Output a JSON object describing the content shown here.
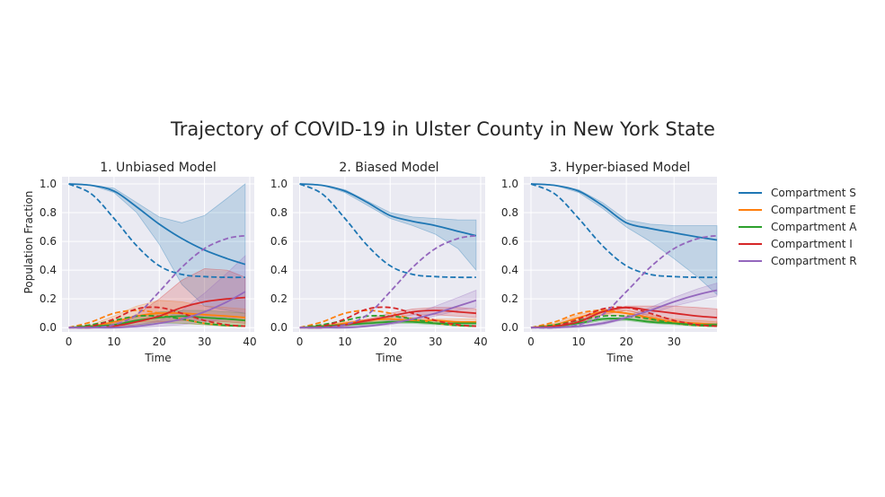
{
  "suptitle": "Trajectory of COVID-19 in Ulster County in New York State",
  "legend": {
    "placement": "right",
    "entries": [
      {
        "label": "Compartment S",
        "color": "#1f77b4"
      },
      {
        "label": "Compartment E",
        "color": "#ff7f0e"
      },
      {
        "label": "Compartment A",
        "color": "#2ca02c"
      },
      {
        "label": "Compartment I",
        "color": "#d62728"
      },
      {
        "label": "Compartment R",
        "color": "#9467bd"
      }
    ]
  },
  "style": {
    "axes_background": "#eaeaf2",
    "grid": true,
    "grid_color": "#ffffff"
  },
  "chart_data": [
    {
      "type": "line",
      "title": "1. Unbiased Model",
      "xlabel": "Time",
      "ylabel": "Population Fraction",
      "xlim": [
        -1.5,
        41
      ],
      "ylim": [
        -0.03,
        1.05
      ],
      "xticks": [
        0,
        10,
        20,
        30,
        40
      ],
      "yticks": [
        0.0,
        0.2,
        0.4,
        0.6,
        0.8,
        1.0
      ],
      "x": [
        0,
        5,
        10,
        15,
        20,
        25,
        30,
        35,
        39
      ],
      "series": [
        {
          "name": "Compartment S",
          "color": "#1f77b4",
          "style": "solid",
          "values": [
            1.0,
            0.99,
            0.95,
            0.84,
            0.72,
            0.62,
            0.54,
            0.48,
            0.44
          ],
          "band_low": [
            1.0,
            0.99,
            0.94,
            0.8,
            0.58,
            0.3,
            0.15,
            0.12,
            0.1
          ],
          "band_high": [
            1.0,
            0.99,
            0.97,
            0.87,
            0.77,
            0.73,
            0.78,
            0.9,
            1.0
          ]
        },
        {
          "name": "Compartment S",
          "color": "#1f77b4",
          "style": "dashed",
          "values": [
            1.0,
            0.93,
            0.76,
            0.57,
            0.43,
            0.37,
            0.355,
            0.35,
            0.35
          ]
        },
        {
          "name": "Compartment E",
          "color": "#ff7f0e",
          "style": "solid",
          "values": [
            0.0,
            0.01,
            0.04,
            0.08,
            0.1,
            0.1,
            0.09,
            0.08,
            0.07
          ],
          "band_low": [
            0.0,
            0.0,
            0.02,
            0.04,
            0.04,
            0.03,
            0.02,
            0.01,
            0.01
          ],
          "band_high": [
            0.0,
            0.02,
            0.08,
            0.15,
            0.19,
            0.18,
            0.15,
            0.14,
            0.13
          ]
        },
        {
          "name": "Compartment E",
          "color": "#ff7f0e",
          "style": "dashed",
          "values": [
            0.0,
            0.04,
            0.1,
            0.12,
            0.1,
            0.06,
            0.03,
            0.015,
            0.01
          ]
        },
        {
          "name": "Compartment A",
          "color": "#2ca02c",
          "style": "solid",
          "values": [
            0.0,
            0.01,
            0.02,
            0.05,
            0.07,
            0.08,
            0.07,
            0.06,
            0.05
          ],
          "band_low": [
            0.0,
            0.0,
            0.01,
            0.02,
            0.03,
            0.03,
            0.02,
            0.01,
            0.01
          ],
          "band_high": [
            0.0,
            0.01,
            0.04,
            0.08,
            0.11,
            0.12,
            0.12,
            0.11,
            0.1
          ]
        },
        {
          "name": "Compartment A",
          "color": "#2ca02c",
          "style": "dashed",
          "values": [
            0.0,
            0.02,
            0.05,
            0.08,
            0.08,
            0.06,
            0.03,
            0.015,
            0.01
          ]
        },
        {
          "name": "Compartment I",
          "color": "#d62728",
          "style": "solid",
          "values": [
            0.0,
            0.0,
            0.01,
            0.04,
            0.08,
            0.14,
            0.18,
            0.2,
            0.21
          ],
          "band_low": [
            0.0,
            0.0,
            0.0,
            0.02,
            0.04,
            0.05,
            0.05,
            0.04,
            0.03
          ],
          "band_high": [
            0.0,
            0.01,
            0.03,
            0.09,
            0.2,
            0.33,
            0.41,
            0.4,
            0.35
          ]
        },
        {
          "name": "Compartment I",
          "color": "#d62728",
          "style": "dashed",
          "values": [
            0.0,
            0.01,
            0.06,
            0.13,
            0.14,
            0.1,
            0.05,
            0.02,
            0.01
          ]
        },
        {
          "name": "Compartment R",
          "color": "#9467bd",
          "style": "solid",
          "values": [
            0.0,
            0.0,
            0.0,
            0.01,
            0.03,
            0.06,
            0.11,
            0.18,
            0.25
          ],
          "band_low": [
            0.0,
            0.0,
            0.0,
            0.0,
            0.01,
            0.02,
            0.04,
            0.06,
            0.08
          ],
          "band_high": [
            0.0,
            0.0,
            0.01,
            0.02,
            0.05,
            0.12,
            0.24,
            0.38,
            0.5
          ]
        },
        {
          "name": "Compartment R",
          "color": "#9467bd",
          "style": "dashed",
          "values": [
            0.0,
            0.0,
            0.02,
            0.09,
            0.25,
            0.42,
            0.55,
            0.62,
            0.64
          ]
        }
      ]
    },
    {
      "type": "line",
      "title": "2. Biased Model",
      "xlabel": "Time",
      "xlim": [
        -1.5,
        41
      ],
      "ylim": [
        -0.03,
        1.05
      ],
      "xticks": [
        0,
        10,
        20,
        30,
        40
      ],
      "yticks": [
        0.0,
        0.2,
        0.4,
        0.6,
        0.8,
        1.0
      ],
      "x": [
        0,
        5,
        10,
        15,
        20,
        25,
        30,
        35,
        39
      ],
      "series": [
        {
          "name": "Compartment S",
          "color": "#1f77b4",
          "style": "solid",
          "values": [
            1.0,
            0.99,
            0.95,
            0.87,
            0.78,
            0.74,
            0.71,
            0.67,
            0.64
          ],
          "band_low": [
            1.0,
            0.99,
            0.94,
            0.85,
            0.76,
            0.71,
            0.65,
            0.55,
            0.4
          ],
          "band_high": [
            1.0,
            0.99,
            0.96,
            0.88,
            0.8,
            0.77,
            0.76,
            0.75,
            0.75
          ]
        },
        {
          "name": "Compartment S",
          "color": "#1f77b4",
          "style": "dashed",
          "values": [
            1.0,
            0.93,
            0.76,
            0.57,
            0.43,
            0.37,
            0.355,
            0.35,
            0.35
          ]
        },
        {
          "name": "Compartment E",
          "color": "#ff7f0e",
          "style": "solid",
          "values": [
            0.0,
            0.01,
            0.03,
            0.05,
            0.06,
            0.05,
            0.05,
            0.04,
            0.04
          ],
          "band_low": [
            0.0,
            0.0,
            0.02,
            0.04,
            0.04,
            0.04,
            0.03,
            0.03,
            0.03
          ],
          "band_high": [
            0.0,
            0.02,
            0.04,
            0.06,
            0.07,
            0.07,
            0.06,
            0.06,
            0.06
          ]
        },
        {
          "name": "Compartment E",
          "color": "#ff7f0e",
          "style": "dashed",
          "values": [
            0.0,
            0.04,
            0.1,
            0.12,
            0.1,
            0.06,
            0.03,
            0.015,
            0.01
          ]
        },
        {
          "name": "Compartment A",
          "color": "#2ca02c",
          "style": "solid",
          "values": [
            0.0,
            0.01,
            0.02,
            0.03,
            0.04,
            0.04,
            0.03,
            0.03,
            0.03
          ],
          "band_low": [
            0.0,
            0.0,
            0.01,
            0.02,
            0.03,
            0.03,
            0.02,
            0.02,
            0.02
          ],
          "band_high": [
            0.0,
            0.01,
            0.03,
            0.04,
            0.05,
            0.05,
            0.04,
            0.04,
            0.04
          ]
        },
        {
          "name": "Compartment A",
          "color": "#2ca02c",
          "style": "dashed",
          "values": [
            0.0,
            0.02,
            0.05,
            0.08,
            0.08,
            0.06,
            0.03,
            0.015,
            0.01
          ]
        },
        {
          "name": "Compartment I",
          "color": "#d62728",
          "style": "solid",
          "values": [
            0.0,
            0.0,
            0.02,
            0.05,
            0.08,
            0.11,
            0.12,
            0.11,
            0.1
          ],
          "band_low": [
            0.0,
            0.0,
            0.01,
            0.04,
            0.07,
            0.09,
            0.09,
            0.08,
            0.07
          ],
          "band_high": [
            0.0,
            0.01,
            0.03,
            0.06,
            0.1,
            0.13,
            0.14,
            0.14,
            0.13
          ]
        },
        {
          "name": "Compartment I",
          "color": "#d62728",
          "style": "dashed",
          "values": [
            0.0,
            0.01,
            0.06,
            0.13,
            0.14,
            0.1,
            0.05,
            0.02,
            0.01
          ]
        },
        {
          "name": "Compartment R",
          "color": "#9467bd",
          "style": "solid",
          "values": [
            0.0,
            0.0,
            0.0,
            0.01,
            0.03,
            0.06,
            0.1,
            0.15,
            0.19
          ],
          "band_low": [
            0.0,
            0.0,
            0.0,
            0.01,
            0.02,
            0.05,
            0.08,
            0.12,
            0.14
          ],
          "band_high": [
            0.0,
            0.0,
            0.01,
            0.02,
            0.05,
            0.09,
            0.15,
            0.21,
            0.26
          ]
        },
        {
          "name": "Compartment R",
          "color": "#9467bd",
          "style": "dashed",
          "values": [
            0.0,
            0.0,
            0.02,
            0.09,
            0.25,
            0.42,
            0.55,
            0.62,
            0.64
          ]
        }
      ]
    },
    {
      "type": "line",
      "title": "3. Hyper-biased Model",
      "xlabel": "Time",
      "xlim": [
        -1.5,
        39
      ],
      "ylim": [
        -0.03,
        1.05
      ],
      "xticks": [
        0,
        10,
        20,
        30
      ],
      "yticks": [
        0.0,
        0.2,
        0.4,
        0.6,
        0.8,
        1.0
      ],
      "x": [
        0,
        5,
        10,
        15,
        20,
        25,
        30,
        35,
        39
      ],
      "series": [
        {
          "name": "Compartment S",
          "color": "#1f77b4",
          "style": "solid",
          "values": [
            1.0,
            0.99,
            0.95,
            0.85,
            0.73,
            0.69,
            0.66,
            0.63,
            0.61
          ],
          "band_low": [
            1.0,
            0.99,
            0.94,
            0.83,
            0.7,
            0.6,
            0.48,
            0.35,
            0.23
          ],
          "band_high": [
            1.0,
            0.99,
            0.96,
            0.87,
            0.75,
            0.72,
            0.71,
            0.71,
            0.71
          ]
        },
        {
          "name": "Compartment S",
          "color": "#1f77b4",
          "style": "dashed",
          "values": [
            1.0,
            0.93,
            0.76,
            0.57,
            0.43,
            0.37,
            0.355,
            0.35,
            0.35
          ]
        },
        {
          "name": "Compartment E",
          "color": "#ff7f0e",
          "style": "solid",
          "values": [
            0.0,
            0.02,
            0.07,
            0.11,
            0.1,
            0.07,
            0.04,
            0.03,
            0.02
          ],
          "band_low": [
            0.0,
            0.01,
            0.05,
            0.09,
            0.08,
            0.05,
            0.03,
            0.02,
            0.01
          ],
          "band_high": [
            0.0,
            0.03,
            0.09,
            0.13,
            0.12,
            0.09,
            0.06,
            0.05,
            0.04
          ]
        },
        {
          "name": "Compartment E",
          "color": "#ff7f0e",
          "style": "dashed",
          "values": [
            0.0,
            0.04,
            0.1,
            0.12,
            0.1,
            0.06,
            0.03,
            0.015,
            0.01
          ]
        },
        {
          "name": "Compartment A",
          "color": "#2ca02c",
          "style": "solid",
          "values": [
            0.0,
            0.01,
            0.03,
            0.06,
            0.06,
            0.04,
            0.03,
            0.02,
            0.02
          ],
          "band_low": [
            0.0,
            0.0,
            0.02,
            0.05,
            0.05,
            0.03,
            0.02,
            0.01,
            0.01
          ],
          "band_high": [
            0.0,
            0.01,
            0.04,
            0.07,
            0.07,
            0.05,
            0.04,
            0.03,
            0.03
          ]
        },
        {
          "name": "Compartment A",
          "color": "#2ca02c",
          "style": "dashed",
          "values": [
            0.0,
            0.02,
            0.05,
            0.08,
            0.08,
            0.06,
            0.03,
            0.015,
            0.01
          ]
        },
        {
          "name": "Compartment I",
          "color": "#d62728",
          "style": "solid",
          "values": [
            0.0,
            0.01,
            0.04,
            0.11,
            0.14,
            0.12,
            0.1,
            0.08,
            0.07
          ],
          "band_low": [
            0.0,
            0.0,
            0.03,
            0.09,
            0.12,
            0.08,
            0.05,
            0.03,
            0.02
          ],
          "band_high": [
            0.0,
            0.01,
            0.05,
            0.12,
            0.15,
            0.15,
            0.15,
            0.14,
            0.13
          ]
        },
        {
          "name": "Compartment I",
          "color": "#d62728",
          "style": "dashed",
          "values": [
            0.0,
            0.01,
            0.06,
            0.13,
            0.14,
            0.1,
            0.05,
            0.02,
            0.01
          ]
        },
        {
          "name": "Compartment R",
          "color": "#9467bd",
          "style": "solid",
          "values": [
            0.0,
            0.0,
            0.01,
            0.03,
            0.07,
            0.12,
            0.18,
            0.23,
            0.26
          ],
          "band_low": [
            0.0,
            0.0,
            0.0,
            0.02,
            0.06,
            0.1,
            0.15,
            0.19,
            0.22
          ],
          "band_high": [
            0.0,
            0.0,
            0.01,
            0.04,
            0.08,
            0.14,
            0.21,
            0.27,
            0.31
          ]
        },
        {
          "name": "Compartment R",
          "color": "#9467bd",
          "style": "dashed",
          "values": [
            0.0,
            0.0,
            0.02,
            0.09,
            0.25,
            0.42,
            0.55,
            0.62,
            0.64
          ]
        }
      ]
    }
  ]
}
